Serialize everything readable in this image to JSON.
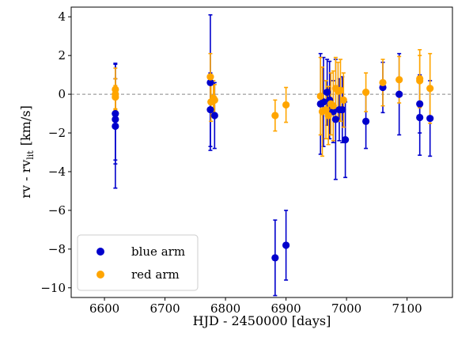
{
  "chart_data": {
    "type": "scatter",
    "title": "",
    "xlabel": "HJD - 2450000 [days]",
    "ylabel_main": "rv - rv",
    "ylabel_sub": "lit",
    "ylabel_unit": "[km/s]",
    "xlim": [
      6545,
      7175
    ],
    "ylim": [
      -10.5,
      4.5
    ],
    "xticks": [
      6600,
      6700,
      6800,
      6900,
      7000,
      7100
    ],
    "yticks": [
      -10,
      -8,
      -6,
      -4,
      -2,
      0,
      2,
      4
    ],
    "reference_line": 0,
    "legend_position": "lower-left",
    "series": [
      {
        "name": "blue arm",
        "color": "#0000cc",
        "points": [
          {
            "x": 6618,
            "y": -1.0,
            "err": 2.6
          },
          {
            "x": 6618,
            "y": -1.3,
            "err": 2.1
          },
          {
            "x": 6618,
            "y": -1.65,
            "err": 3.2
          },
          {
            "x": 6775,
            "y": 0.6,
            "err": 3.5
          },
          {
            "x": 6775,
            "y": -0.8,
            "err": 1.9
          },
          {
            "x": 6782,
            "y": -1.1,
            "err": 1.7
          },
          {
            "x": 6882,
            "y": -8.45,
            "err": 1.95
          },
          {
            "x": 6900,
            "y": -7.8,
            "err": 1.8
          },
          {
            "x": 6957,
            "y": -0.5,
            "err": 2.6
          },
          {
            "x": 6962,
            "y": -0.4,
            "err": 2.3
          },
          {
            "x": 6968,
            "y": 0.1,
            "err": 1.7
          },
          {
            "x": 6972,
            "y": -0.3,
            "err": 2.0
          },
          {
            "x": 6978,
            "y": -0.9,
            "err": 1.6
          },
          {
            "x": 6982,
            "y": -1.3,
            "err": 3.1
          },
          {
            "x": 6988,
            "y": -0.8,
            "err": 1.6
          },
          {
            "x": 6993,
            "y": -0.8,
            "err": 1.7
          },
          {
            "x": 6998,
            "y": -2.35,
            "err": 1.95
          },
          {
            "x": 7032,
            "y": -1.4,
            "err": 1.4
          },
          {
            "x": 7060,
            "y": 0.35,
            "err": 1.3
          },
          {
            "x": 7087,
            "y": 0.0,
            "err": 2.1
          },
          {
            "x": 7121,
            "y": -0.5,
            "err": 1.5
          },
          {
            "x": 7121,
            "y": -1.2,
            "err": 1.95
          },
          {
            "x": 7138,
            "y": -1.25,
            "err": 1.95
          }
        ]
      },
      {
        "name": "red arm",
        "color": "#ffa500",
        "points": [
          {
            "x": 6618,
            "y": 0.25,
            "err": 1.1
          },
          {
            "x": 6618,
            "y": 0.0,
            "err": 0.8
          },
          {
            "x": 6618,
            "y": -0.15,
            "err": 0.6
          },
          {
            "x": 6775,
            "y": 0.9,
            "err": 1.2
          },
          {
            "x": 6776,
            "y": -0.4,
            "err": 1.0
          },
          {
            "x": 6780,
            "y": -0.2,
            "err": 0.9
          },
          {
            "x": 6782,
            "y": -0.3,
            "err": 0.8
          },
          {
            "x": 6882,
            "y": -1.1,
            "err": 0.8
          },
          {
            "x": 6900,
            "y": -0.55,
            "err": 0.9
          },
          {
            "x": 6957,
            "y": -0.1,
            "err": 2.0
          },
          {
            "x": 6960,
            "y": -0.9,
            "err": 2.3
          },
          {
            "x": 6966,
            "y": -0.8,
            "err": 1.5
          },
          {
            "x": 6970,
            "y": -1.1,
            "err": 1.5
          },
          {
            "x": 6974,
            "y": -0.5,
            "err": 1.6
          },
          {
            "x": 6978,
            "y": -0.6,
            "err": 1.8
          },
          {
            "x": 6982,
            "y": 0.3,
            "err": 1.6
          },
          {
            "x": 6986,
            "y": 0.15,
            "err": 1.5
          },
          {
            "x": 6990,
            "y": 0.2,
            "err": 1.6
          },
          {
            "x": 6995,
            "y": -0.3,
            "err": 1.4
          },
          {
            "x": 7032,
            "y": 0.1,
            "err": 1.0
          },
          {
            "x": 7060,
            "y": 0.6,
            "err": 1.2
          },
          {
            "x": 7087,
            "y": 0.75,
            "err": 1.2
          },
          {
            "x": 7121,
            "y": 0.8,
            "err": 1.5
          },
          {
            "x": 7121,
            "y": 0.7,
            "err": 1.3
          },
          {
            "x": 7138,
            "y": 0.3,
            "err": 1.8
          }
        ]
      }
    ]
  }
}
